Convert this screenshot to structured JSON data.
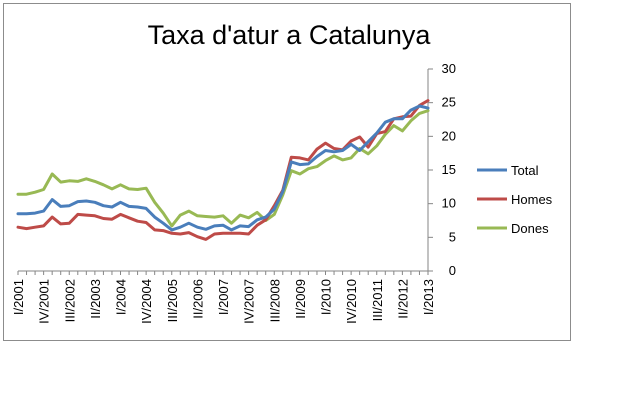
{
  "chart_data": {
    "type": "line",
    "title": "Taxa d'atur a Catalunya",
    "xlabel": "",
    "ylabel": "",
    "ylim": [
      0,
      30
    ],
    "yticks": [
      "0",
      "5",
      "10",
      "15",
      "20",
      "25",
      "30"
    ],
    "y_axis_side": "right",
    "grid": false,
    "legend_position": "right",
    "x": [
      "I/2001",
      "II/2001",
      "III/2001",
      "IV/2001",
      "I/2002",
      "II/2002",
      "III/2002",
      "IV/2002",
      "I/2003",
      "II/2003",
      "III/2003",
      "IV/2003",
      "I/2004",
      "II/2004",
      "III/2004",
      "IV/2004",
      "I/2005",
      "II/2005",
      "III/2005",
      "IV/2005",
      "I/2006",
      "II/2006",
      "III/2006",
      "IV/2006",
      "I/2007",
      "II/2007",
      "III/2007",
      "IV/2007",
      "I/2008",
      "II/2008",
      "III/2008",
      "IV/2008",
      "I/2009",
      "II/2009",
      "III/2009",
      "IV/2009",
      "I/2010",
      "II/2010",
      "III/2010",
      "IV/2010",
      "I/2011",
      "II/2011",
      "III/2011",
      "IV/2011",
      "I/2012",
      "II/2012",
      "III/2012",
      "IV/2012",
      "I/2013"
    ],
    "x_tick_labels": [
      "I/2001",
      "IV/2001",
      "III/2002",
      "II/2003",
      "I/2004",
      "IV/2004",
      "III/2005",
      "II/2006",
      "I/2007",
      "IV/2007",
      "III/2008",
      "II/2009",
      "I/2010",
      "IV/2010",
      "III/2011",
      "II/2012",
      "I/2013"
    ],
    "series": [
      {
        "name": "Total",
        "color": "#4a7ebb",
        "values": [
          8.5,
          8.5,
          8.6,
          8.9,
          10.6,
          9.6,
          9.7,
          10.3,
          10.4,
          10.2,
          9.7,
          9.5,
          10.2,
          9.6,
          9.5,
          9.3,
          8.0,
          7.1,
          6.1,
          6.5,
          7.1,
          6.5,
          6.2,
          6.7,
          6.8,
          6.1,
          6.7,
          6.6,
          7.6,
          8.0,
          9.2,
          11.8,
          16.2,
          15.8,
          15.9,
          17.0,
          17.9,
          17.7,
          17.9,
          18.8,
          17.9,
          19.2,
          20.5,
          22.1,
          22.6,
          22.6,
          23.9,
          24.5,
          24.2
        ]
      },
      {
        "name": "Homes",
        "color": "#be4b48",
        "values": [
          6.5,
          6.3,
          6.5,
          6.7,
          8.0,
          7.0,
          7.1,
          8.4,
          8.3,
          8.2,
          7.8,
          7.7,
          8.4,
          7.9,
          7.4,
          7.2,
          6.1,
          6.0,
          5.6,
          5.5,
          5.7,
          5.1,
          4.7,
          5.5,
          5.6,
          5.6,
          5.6,
          5.5,
          6.8,
          7.6,
          9.7,
          12.0,
          16.9,
          16.8,
          16.5,
          18.1,
          19.0,
          18.2,
          18.0,
          19.3,
          19.9,
          18.4,
          20.4,
          20.7,
          22.6,
          22.9,
          23.0,
          24.6,
          25.3
        ]
      },
      {
        "name": "Dones",
        "color": "#98b954",
        "values": [
          11.4,
          11.4,
          11.7,
          12.1,
          14.4,
          13.2,
          13.4,
          13.3,
          13.7,
          13.3,
          12.8,
          12.2,
          12.8,
          12.2,
          12.1,
          12.3,
          10.2,
          8.6,
          6.7,
          8.3,
          8.9,
          8.2,
          8.1,
          8.0,
          8.2,
          7.1,
          8.3,
          7.9,
          8.7,
          7.5,
          8.4,
          11.3,
          14.9,
          14.4,
          15.2,
          15.5,
          16.4,
          17.1,
          16.5,
          16.8,
          18.2,
          17.4,
          18.6,
          20.3,
          21.6,
          20.8,
          22.3,
          23.4,
          23.8
        ]
      }
    ]
  }
}
